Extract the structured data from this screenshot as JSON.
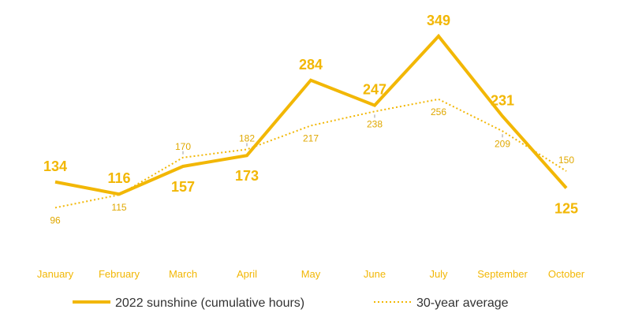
{
  "chart_data": {
    "type": "line",
    "categories": [
      "January",
      "February",
      "March",
      "April",
      "May",
      "June",
      "July",
      "September",
      "October"
    ],
    "series": [
      {
        "name": "2022 sunshine (cumulative hours)",
        "values": [
          134,
          116,
          157,
          173,
          284,
          247,
          349,
          231,
          125
        ],
        "style": "solid"
      },
      {
        "name": "30-year average",
        "values": [
          96,
          115,
          170,
          182,
          217,
          238,
          256,
          209,
          150
        ],
        "style": "dotted"
      }
    ],
    "title": "",
    "xlabel": "",
    "ylabel": "",
    "grid": false,
    "legend": "bottom",
    "colors": {
      "main": "#f2b705",
      "average": "#f2b705",
      "tick": "#999999"
    }
  }
}
